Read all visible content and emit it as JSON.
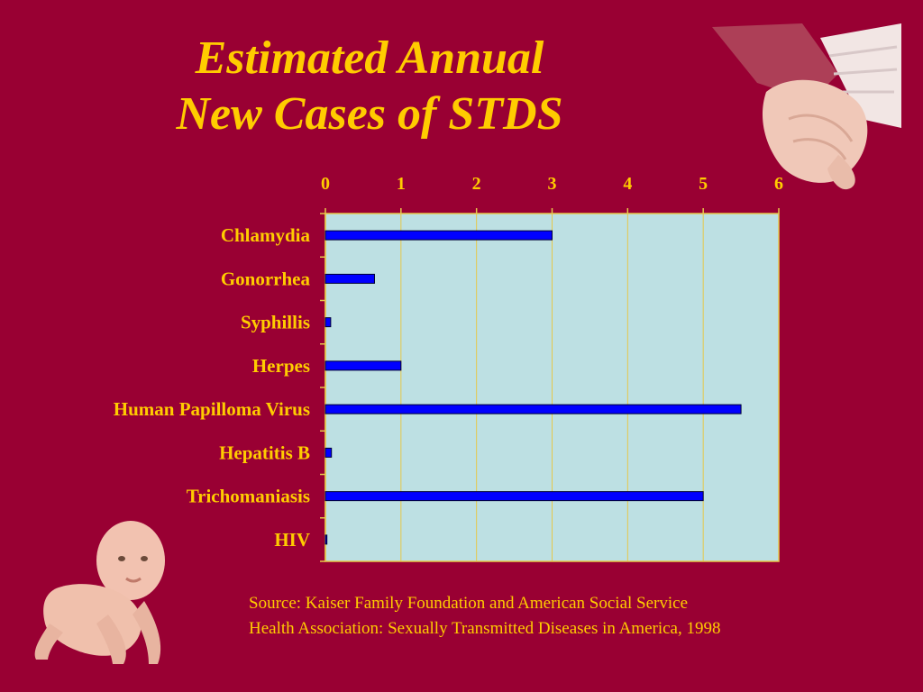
{
  "slide": {
    "title_line1": "Estimated Annual",
    "title_line2": "New Cases of STDS",
    "source_line1": "Source: Kaiser Family Foundation and American Social Service",
    "source_line2": "Health Association: Sexually Transmitted Diseases in America, 1998"
  },
  "colors": {
    "background": "#990033",
    "text": "#ffcc00",
    "plot_area": "#bde0e3",
    "bar": "#0000ff",
    "gridline": "#e6c84a"
  },
  "chart_data": {
    "type": "bar",
    "orientation": "horizontal",
    "categories": [
      "Chlamydia",
      "Gonorrhea",
      "Syphillis",
      "Herpes",
      "Human Papilloma Virus",
      "Hepatitis B",
      "Trichomaniasis",
      "HIV"
    ],
    "values": [
      3,
      0.65,
      0.07,
      1,
      5.5,
      0.08,
      5,
      0.02
    ],
    "x_ticks": [
      "0",
      "1",
      "2",
      "3",
      "4",
      "5",
      "6"
    ],
    "xlim": [
      0,
      6
    ],
    "x_axis_position": "top",
    "grid": true,
    "legend": "none"
  }
}
